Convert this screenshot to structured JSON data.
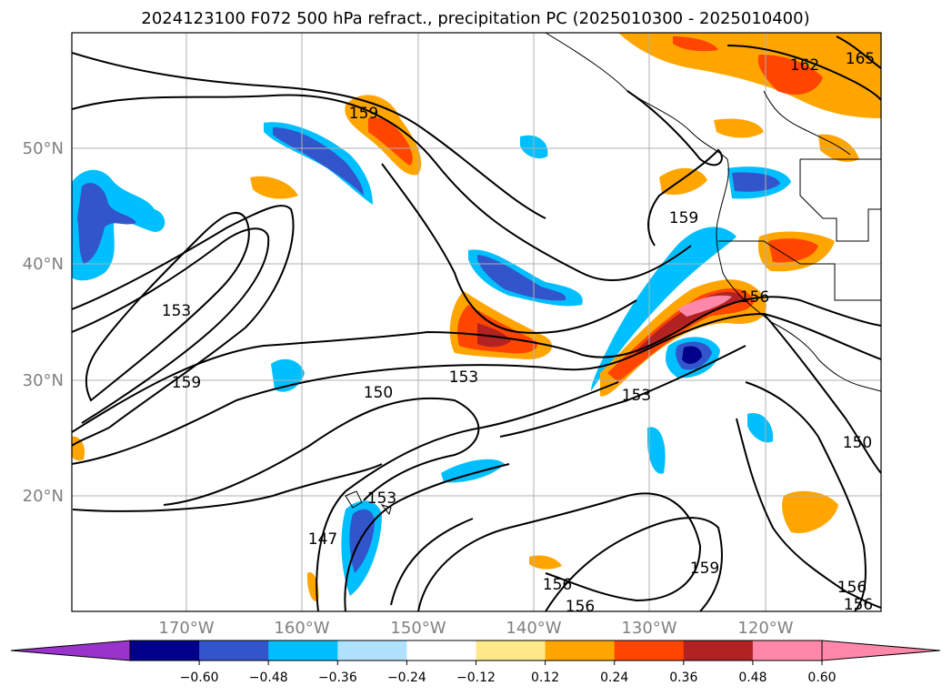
{
  "map": {
    "title": "2024123100 F072 500 hPa refract., precipitation PC (2025010300 - 2025010400)",
    "lat_labels": [
      "50°N",
      "40°N",
      "30°N",
      "20°N"
    ],
    "lon_labels": [
      "170°W",
      "160°W",
      "150°W",
      "140°W",
      "130°W",
      "120°W"
    ],
    "contour_labels": [
      {
        "text": "159"
      },
      {
        "text": "153"
      },
      {
        "text": "159"
      },
      {
        "text": "150"
      },
      {
        "text": "153"
      },
      {
        "text": "159"
      },
      {
        "text": "156"
      },
      {
        "text": "153"
      },
      {
        "text": "153"
      },
      {
        "text": "147"
      },
      {
        "text": "156"
      },
      {
        "text": "156"
      },
      {
        "text": "159"
      },
      {
        "text": "150"
      },
      {
        "text": "156"
      },
      {
        "text": "156"
      },
      {
        "text": "162"
      },
      {
        "text": "165"
      }
    ]
  },
  "colorbar": {
    "tick_labels": [
      "−0.60",
      "−0.48",
      "−0.36",
      "−0.24",
      "−0.12",
      "0.12",
      "0.24",
      "0.36",
      "0.48",
      "0.60"
    ],
    "colors": {
      "under": "#9933cc",
      "bins": [
        "#00008b",
        "#3355cc",
        "#00bfff",
        "#b0e2ff",
        "#ffffff",
        "#ffe88a",
        "#ffa500",
        "#ff4500",
        "#b22222",
        "#ff88aa"
      ],
      "over": "#ff88aa"
    }
  },
  "colors": {
    "land_line": "#000000",
    "contour": "#000000",
    "grid": "#b0b0b0"
  }
}
